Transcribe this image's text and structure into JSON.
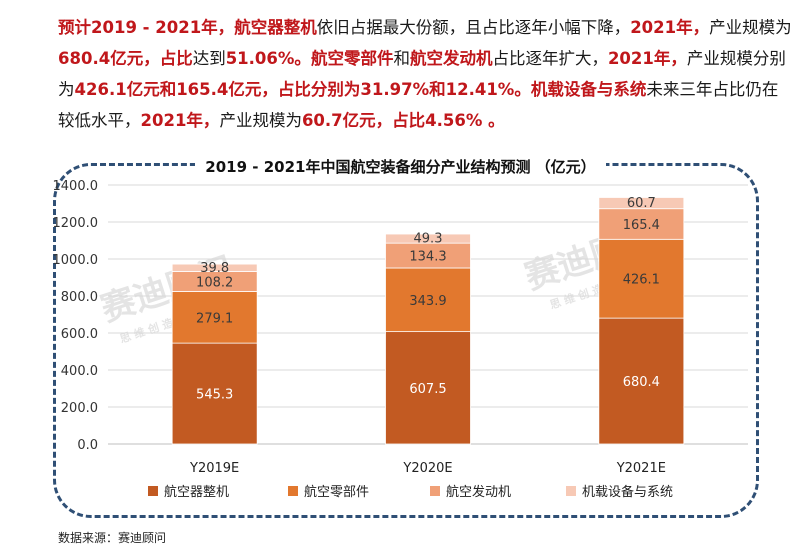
{
  "paragraph": {
    "segments": [
      {
        "text": "预计2019 - 2021年，",
        "style": "red"
      },
      {
        "text": "航空器整机",
        "style": "red"
      },
      {
        "text": "依旧占据最大份额，且占比逐年小幅下降，",
        "style": "blk"
      },
      {
        "text": "2021年，",
        "style": "red"
      },
      {
        "text": "产业规模为",
        "style": "blk"
      },
      {
        "text": "680.4亿元，占比",
        "style": "red"
      },
      {
        "text": "达到",
        "style": "blk"
      },
      {
        "text": "51.06%。",
        "style": "red"
      },
      {
        "text": "航空零部件",
        "style": "red"
      },
      {
        "text": "和",
        "style": "blk"
      },
      {
        "text": "航空发动机",
        "style": "red"
      },
      {
        "text": "占比逐年扩大，",
        "style": "blk"
      },
      {
        "text": "2021年，",
        "style": "red"
      },
      {
        "text": "产业规模分别为",
        "style": "blk"
      },
      {
        "text": "426.1亿元和165.4亿元，占比分别为31.97%和12.41%。",
        "style": "red"
      },
      {
        "text": "机载设备与系统",
        "style": "red"
      },
      {
        "text": "未来三年占比仍在较低水平，",
        "style": "blk"
      },
      {
        "text": "2021年，",
        "style": "red"
      },
      {
        "text": "产业规模为",
        "style": "blk"
      },
      {
        "text": "60.7亿元，占比4.56% 。",
        "style": "red"
      }
    ]
  },
  "chart_data": {
    "type": "bar",
    "stacked": true,
    "title": "2019 - 2021年中国航空装备细分产业结构预测 （亿元）",
    "categories": [
      "Y2019E",
      "Y2020E",
      "Y2021E"
    ],
    "series": [
      {
        "name": "航空器整机",
        "values": [
          545.3,
          607.5,
          680.4
        ],
        "color": "#c25a22"
      },
      {
        "name": "航空零部件",
        "values": [
          279.1,
          343.9,
          426.1
        ],
        "color": "#e2782e"
      },
      {
        "name": "航空发动机",
        "values": [
          108.2,
          134.3,
          165.4
        ],
        "color": "#f0a077"
      },
      {
        "name": "机载设备与系统",
        "values": [
          39.8,
          49.3,
          60.7
        ],
        "color": "#f7c9b5"
      }
    ],
    "ylim": [
      0,
      1400
    ],
    "yticks": [
      "0.0",
      "200.0",
      "400.0",
      "600.0",
      "800.0",
      "1000.0",
      "1200.0",
      "1400.0"
    ],
    "grid": true,
    "legend": "bottom",
    "label_colors": {
      "dark": "#ffffff",
      "light": "#333333",
      "inside_mid": "#3a3a3a"
    }
  },
  "watermark": {
    "brand": "赛迪顾问",
    "slogan": "思 维 创 造 世 界"
  },
  "source": "数据来源：赛迪顾问"
}
